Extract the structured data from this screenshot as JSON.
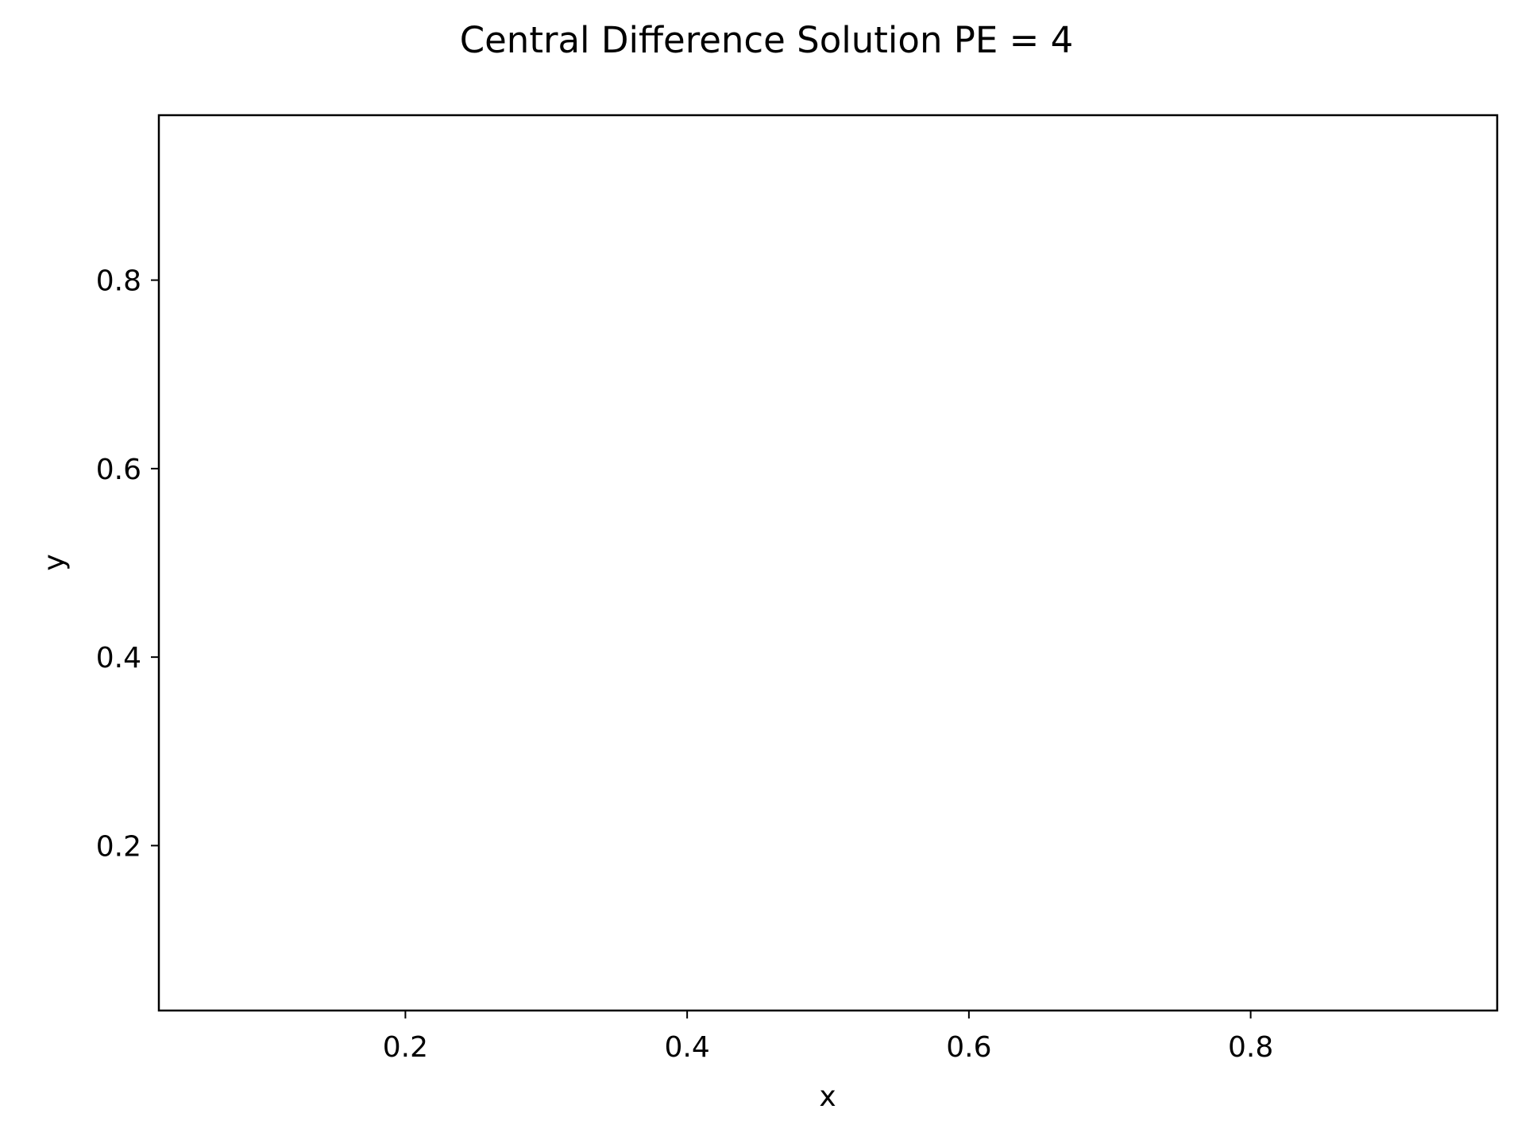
{
  "chart_data": {
    "type": "heatmap",
    "title": "Central Difference Solution PE = 4",
    "xlabel": "x",
    "ylabel": "y",
    "xlim": [
      0.025,
      0.975
    ],
    "ylim": [
      0.025,
      0.975
    ],
    "x_ticks": [
      0.2,
      0.4,
      0.6,
      0.8
    ],
    "x_tick_labels": [
      "0.2",
      "0.4",
      "0.6",
      "0.8"
    ],
    "y_ticks": [
      0.2,
      0.4,
      0.6,
      0.8
    ],
    "y_tick_labels": [
      "0.2",
      "0.4",
      "0.6",
      "0.8"
    ],
    "grid": false,
    "series": []
  },
  "colors": {
    "background": "#ffffff",
    "axes": "#000000",
    "text": "#000000"
  }
}
